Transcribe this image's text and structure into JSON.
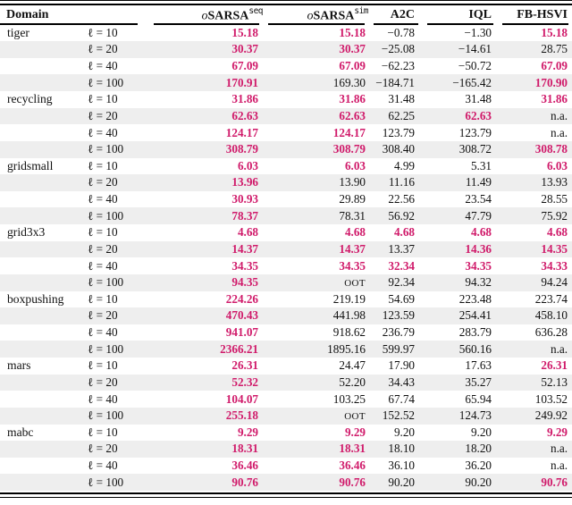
{
  "colors": {
    "accent": "#d01a6a",
    "stripe": "#eeeeee",
    "rule": "#000000",
    "text": "#111111"
  },
  "table": {
    "domain_header": "Domain",
    "methods": [
      {
        "prefix": "o",
        "name": "SARSA",
        "sup": "seq"
      },
      {
        "prefix": "o",
        "name": "SARSA",
        "sup": "sim"
      },
      {
        "prefix": "",
        "name": "A2C",
        "sup": ""
      },
      {
        "prefix": "",
        "name": "IQL",
        "sup": ""
      },
      {
        "prefix": "",
        "name": "FB-HSVI",
        "sup": ""
      }
    ],
    "groups": [
      {
        "domain": "tiger",
        "rows": [
          {
            "l": "ℓ = 10",
            "values": [
              {
                "v": "15.18",
                "hl": true
              },
              {
                "v": "15.18",
                "hl": true
              },
              {
                "v": "−0.78"
              },
              {
                "v": "−1.30"
              },
              {
                "v": "15.18",
                "hl": true
              }
            ]
          },
          {
            "l": "ℓ = 20",
            "values": [
              {
                "v": "30.37",
                "hl": true
              },
              {
                "v": "30.37",
                "hl": true
              },
              {
                "v": "−25.08"
              },
              {
                "v": "−14.61"
              },
              {
                "v": "28.75"
              }
            ]
          },
          {
            "l": "ℓ = 40",
            "values": [
              {
                "v": "67.09",
                "hl": true
              },
              {
                "v": "67.09",
                "hl": true
              },
              {
                "v": "−62.23"
              },
              {
                "v": "−50.72"
              },
              {
                "v": "67.09",
                "hl": true
              }
            ]
          },
          {
            "l": "ℓ = 100",
            "values": [
              {
                "v": "170.91",
                "hl": true
              },
              {
                "v": "169.30"
              },
              {
                "v": "−184.71"
              },
              {
                "v": "−165.42"
              },
              {
                "v": "170.90",
                "hl": true
              }
            ]
          }
        ]
      },
      {
        "domain": "recycling",
        "rows": [
          {
            "l": "ℓ = 10",
            "values": [
              {
                "v": "31.86",
                "hl": true
              },
              {
                "v": "31.86",
                "hl": true
              },
              {
                "v": "31.48"
              },
              {
                "v": "31.48"
              },
              {
                "v": "31.86",
                "hl": true
              }
            ]
          },
          {
            "l": "ℓ = 20",
            "values": [
              {
                "v": "62.63",
                "hl": true
              },
              {
                "v": "62.63",
                "hl": true
              },
              {
                "v": "62.25"
              },
              {
                "v": "62.63",
                "hl": true
              },
              {
                "v": "n.a."
              }
            ]
          },
          {
            "l": "ℓ = 40",
            "values": [
              {
                "v": "124.17",
                "hl": true
              },
              {
                "v": "124.17",
                "hl": true
              },
              {
                "v": "123.79"
              },
              {
                "v": "123.79"
              },
              {
                "v": "n.a."
              }
            ]
          },
          {
            "l": "ℓ = 100",
            "values": [
              {
                "v": "308.79",
                "hl": true
              },
              {
                "v": "308.79",
                "hl": true
              },
              {
                "v": "308.40"
              },
              {
                "v": "308.72"
              },
              {
                "v": "308.78",
                "hl": true
              }
            ]
          }
        ]
      },
      {
        "domain": "gridsmall",
        "rows": [
          {
            "l": "ℓ = 10",
            "values": [
              {
                "v": "6.03",
                "hl": true
              },
              {
                "v": "6.03",
                "hl": true
              },
              {
                "v": "4.99"
              },
              {
                "v": "5.31"
              },
              {
                "v": "6.03",
                "hl": true
              }
            ]
          },
          {
            "l": "ℓ = 20",
            "values": [
              {
                "v": "13.96",
                "hl": true
              },
              {
                "v": "13.90"
              },
              {
                "v": "11.16"
              },
              {
                "v": "11.49"
              },
              {
                "v": "13.93"
              }
            ]
          },
          {
            "l": "ℓ = 40",
            "values": [
              {
                "v": "30.93",
                "hl": true
              },
              {
                "v": "29.89"
              },
              {
                "v": "22.56"
              },
              {
                "v": "23.54"
              },
              {
                "v": "28.55"
              }
            ]
          },
          {
            "l": "ℓ = 100",
            "values": [
              {
                "v": "78.37",
                "hl": true
              },
              {
                "v": "78.31"
              },
              {
                "v": "56.92"
              },
              {
                "v": "47.79"
              },
              {
                "v": "75.92"
              }
            ]
          }
        ]
      },
      {
        "domain": "grid3x3",
        "rows": [
          {
            "l": "ℓ = 10",
            "values": [
              {
                "v": "4.68",
                "hl": true
              },
              {
                "v": "4.68",
                "hl": true
              },
              {
                "v": "4.68",
                "hl": true
              },
              {
                "v": "4.68",
                "hl": true
              },
              {
                "v": "4.68",
                "hl": true
              }
            ]
          },
          {
            "l": "ℓ = 20",
            "values": [
              {
                "v": "14.37",
                "hl": true
              },
              {
                "v": "14.37",
                "hl": true
              },
              {
                "v": "13.37"
              },
              {
                "v": "14.36",
                "hl": true
              },
              {
                "v": "14.35",
                "hl": true
              }
            ]
          },
          {
            "l": "ℓ = 40",
            "values": [
              {
                "v": "34.35",
                "hl": true
              },
              {
                "v": "34.35",
                "hl": true
              },
              {
                "v": "32.34",
                "hl": true
              },
              {
                "v": "34.35",
                "hl": true
              },
              {
                "v": "34.33",
                "hl": true
              }
            ]
          },
          {
            "l": "ℓ = 100",
            "values": [
              {
                "v": "94.35",
                "hl": true
              },
              {
                "v": "OOT",
                "sc": true
              },
              {
                "v": "92.34"
              },
              {
                "v": "94.32"
              },
              {
                "v": "94.24"
              }
            ]
          }
        ]
      },
      {
        "domain": "boxpushing",
        "rows": [
          {
            "l": "ℓ = 10",
            "values": [
              {
                "v": "224.26",
                "hl": true
              },
              {
                "v": "219.19"
              },
              {
                "v": "54.69"
              },
              {
                "v": "223.48"
              },
              {
                "v": "223.74"
              }
            ]
          },
          {
            "l": "ℓ = 20",
            "values": [
              {
                "v": "470.43",
                "hl": true
              },
              {
                "v": "441.98"
              },
              {
                "v": "123.59"
              },
              {
                "v": "254.41"
              },
              {
                "v": "458.10"
              }
            ]
          },
          {
            "l": "ℓ = 40",
            "values": [
              {
                "v": "941.07",
                "hl": true
              },
              {
                "v": "918.62"
              },
              {
                "v": "236.79"
              },
              {
                "v": "283.79"
              },
              {
                "v": "636.28"
              }
            ]
          },
          {
            "l": "ℓ = 100",
            "values": [
              {
                "v": "2366.21",
                "hl": true
              },
              {
                "v": "1895.16"
              },
              {
                "v": "599.97"
              },
              {
                "v": "560.16"
              },
              {
                "v": "n.a."
              }
            ]
          }
        ]
      },
      {
        "domain": "mars",
        "rows": [
          {
            "l": "ℓ = 10",
            "values": [
              {
                "v": "26.31",
                "hl": true
              },
              {
                "v": "24.47"
              },
              {
                "v": "17.90"
              },
              {
                "v": "17.63"
              },
              {
                "v": "26.31",
                "hl": true
              }
            ]
          },
          {
            "l": "ℓ = 20",
            "values": [
              {
                "v": "52.32",
                "hl": true
              },
              {
                "v": "52.20"
              },
              {
                "v": "34.43"
              },
              {
                "v": "35.27"
              },
              {
                "v": "52.13"
              }
            ]
          },
          {
            "l": "ℓ = 40",
            "values": [
              {
                "v": "104.07",
                "hl": true
              },
              {
                "v": "103.25"
              },
              {
                "v": "67.74"
              },
              {
                "v": "65.94"
              },
              {
                "v": "103.52"
              }
            ]
          },
          {
            "l": "ℓ = 100",
            "values": [
              {
                "v": "255.18",
                "hl": true
              },
              {
                "v": "OOT",
                "sc": true
              },
              {
                "v": "152.52"
              },
              {
                "v": "124.73"
              },
              {
                "v": "249.92"
              }
            ]
          }
        ]
      },
      {
        "domain": "mabc",
        "rows": [
          {
            "l": "ℓ = 10",
            "values": [
              {
                "v": "9.29",
                "hl": true
              },
              {
                "v": "9.29",
                "hl": true
              },
              {
                "v": "9.20"
              },
              {
                "v": "9.20"
              },
              {
                "v": "9.29",
                "hl": true
              }
            ]
          },
          {
            "l": "ℓ = 20",
            "values": [
              {
                "v": "18.31",
                "hl": true
              },
              {
                "v": "18.31",
                "hl": true
              },
              {
                "v": "18.10"
              },
              {
                "v": "18.20"
              },
              {
                "v": "n.a."
              }
            ]
          },
          {
            "l": "ℓ = 40",
            "values": [
              {
                "v": "36.46",
                "hl": true
              },
              {
                "v": "36.46",
                "hl": true
              },
              {
                "v": "36.10"
              },
              {
                "v": "36.20"
              },
              {
                "v": "n.a."
              }
            ]
          },
          {
            "l": "ℓ = 100",
            "values": [
              {
                "v": "90.76",
                "hl": true
              },
              {
                "v": "90.76",
                "hl": true
              },
              {
                "v": "90.20"
              },
              {
                "v": "90.20"
              },
              {
                "v": "90.76",
                "hl": true
              }
            ]
          }
        ]
      }
    ]
  }
}
